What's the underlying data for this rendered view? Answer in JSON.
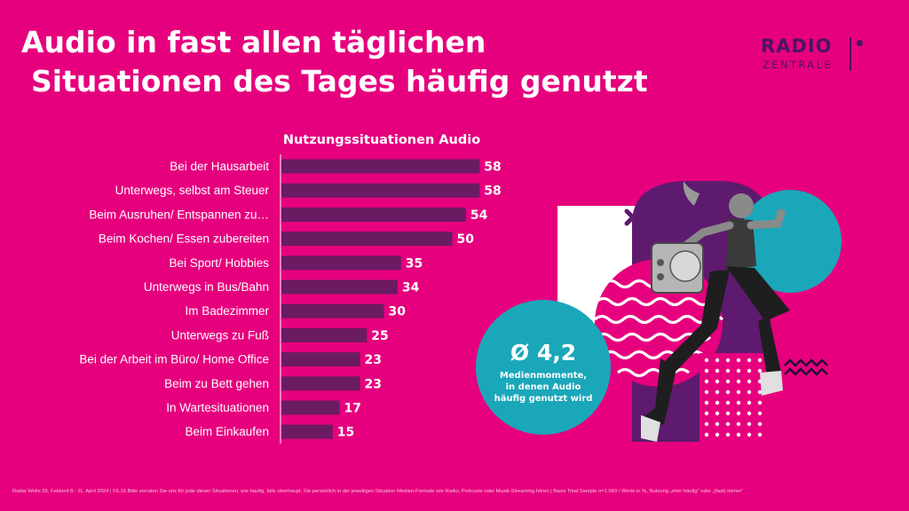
{
  "header": {
    "title_line1": "Audio in fast allen täglichen",
    "title_line2": "Situationen des Tages häufig genutzt",
    "logo_radio": "RADIO",
    "logo_zentrale": "ZENTRALE"
  },
  "colors": {
    "background": "#E6007E",
    "bar": "#6B1B62",
    "purple": "#5E1A6E",
    "teal": "#1AA7B9",
    "white": "#FFFFFF"
  },
  "chart_data": {
    "type": "bar",
    "orientation": "horizontal",
    "title": "Nutzungssituationen Audio",
    "categories": [
      "Bei der Hausarbeit",
      "Unterwegs, selbst am Steuer",
      "Beim Ausruhen/ Entspannen zu…",
      "Beim Kochen/ Essen zubereiten",
      "Bei Sport/ Hobbies",
      "Unterwegs in Bus/Bahn",
      "Im Badezimmer",
      "Unterwegs zu Fuß",
      "Bei der Arbeit im Büro/ Home Office",
      "Beim zu Bett gehen",
      "In Wartesituationen",
      "Beim Einkaufen"
    ],
    "values": [
      58,
      58,
      54,
      50,
      35,
      34,
      30,
      25,
      23,
      23,
      17,
      15
    ],
    "xlim": [
      0,
      60
    ],
    "grid": false,
    "legend": "none"
  },
  "callout": {
    "value": "Ø 4,2",
    "text_line1": "Medienmomente,",
    "text_line2": "in denen Audio",
    "text_line3": "häufig genutzt wird"
  },
  "footnote": "Radar Welle 55, Feldzeit 8.- 11. April 2024 | F6.16 Bitte verraten Sie uns für jede dieser Situationen, wie häufig, falls überhaupt, Sie persönlich in der jeweiligen Situation Medien-Formate wie Radio, Podcasts oder Musik-Streaming hören | Basis Total Sample n=1.043 / Werte in %, Nutzung „eher häufig\" oder „(fast) immer\""
}
